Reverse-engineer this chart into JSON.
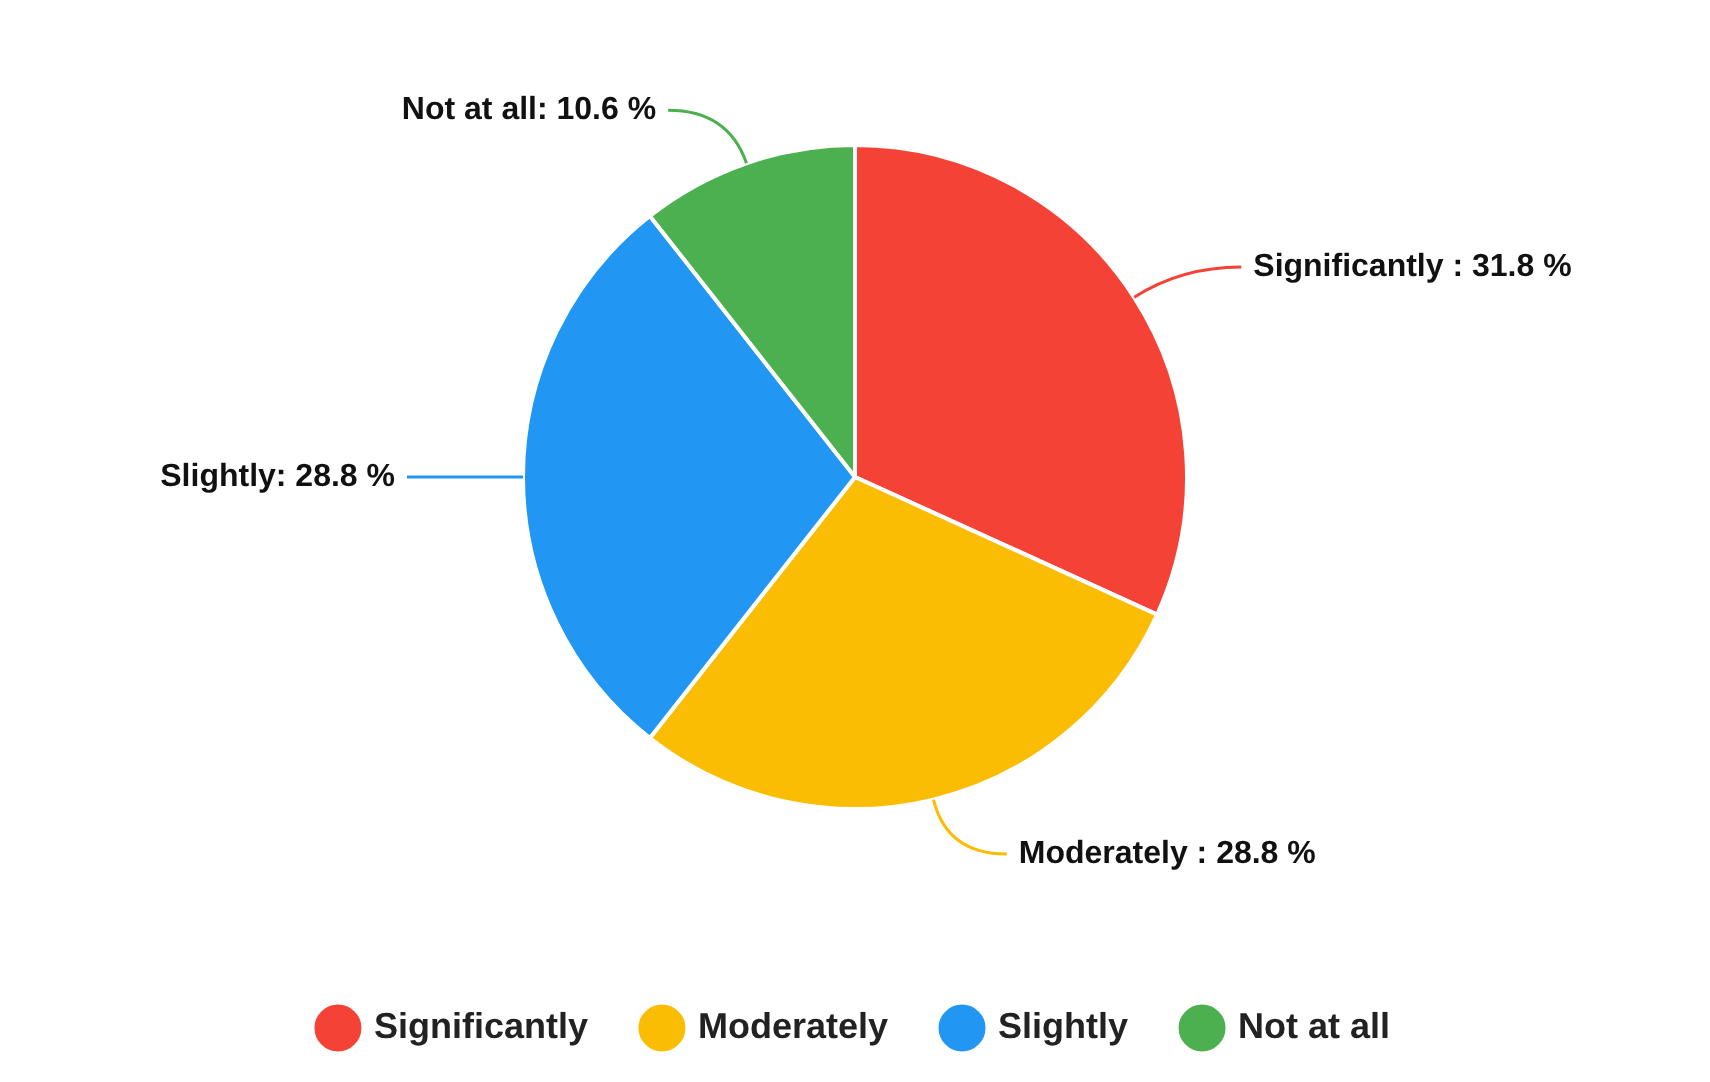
{
  "chart_data": {
    "type": "pie",
    "categories": [
      "Significantly",
      "Moderately",
      "Slightly",
      "Not at all"
    ],
    "values": [
      31.8,
      28.8,
      28.8,
      10.6
    ],
    "colors": [
      "#f44336",
      "#fbbc04",
      "#2196f3",
      "#4caf50"
    ],
    "value_labels": [
      "Significantly : 31.8 %",
      "Moderately : 28.8 %",
      "Slightly: 28.8 %",
      "Not at all: 10.6 %"
    ],
    "legend": "bottom"
  }
}
